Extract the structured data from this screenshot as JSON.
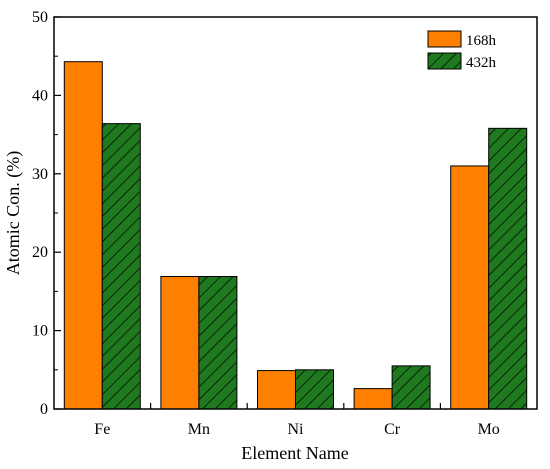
{
  "chart_data": {
    "type": "bar",
    "categories": [
      "Fe",
      "Mn",
      "Ni",
      "Cr",
      "Mo"
    ],
    "series": [
      {
        "name": "168h",
        "values": [
          44.3,
          16.9,
          4.9,
          2.6,
          31.0
        ],
        "color": "#ff8000",
        "pattern": "solid"
      },
      {
        "name": "432h",
        "values": [
          36.4,
          16.9,
          5.0,
          5.5,
          35.8
        ],
        "color": "#1f7a1f",
        "pattern": "diagonal-hatch"
      }
    ],
    "xlabel": "Element Name",
    "ylabel": "Atomic Con. (%)",
    "ylim": [
      0,
      50
    ],
    "yticks": [
      0,
      10,
      20,
      30,
      40,
      50
    ],
    "legend_position": "top-right",
    "grid": false
  }
}
